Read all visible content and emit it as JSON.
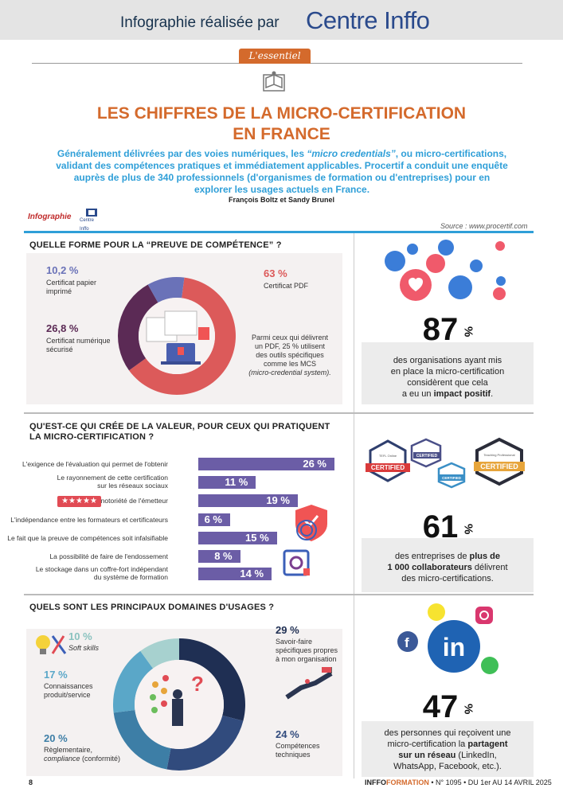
{
  "header": {
    "credit": "Infographie réalisée par",
    "brand": "Centre Inffo",
    "section_tab": "L'essentiel"
  },
  "title": {
    "line1": "LES CHIFFRES DE LA MICRO-CERTIFICATION",
    "line2": "EN FRANCE"
  },
  "intro": {
    "part1": "Généralement délivrées par des voies numériques, les ",
    "italic": "“micro credentials”",
    "part2": ", ou micro-certifications, validant des compétences pratiques et immédiatement applicables. Procertif a conduit une enquête auprès de plus de 340 professionnels (d'organismes de formation ou d'entreprises) pour en explorer les usages actuels en France."
  },
  "authors": "François Boltz et Sandy Brunel",
  "infographie_label": "Infographie",
  "centre_inffo_small": "Centre Inffo",
  "source": "Source : www.procertif.com",
  "section1": {
    "title": "QUELLE FORME POUR LA “PREUVE DE COMPÉTENCE” ?",
    "items": [
      {
        "pct": "10,2 %",
        "label1": "Certificat papier",
        "label2": "imprimé",
        "value": 10.2,
        "color": "#6a72b8"
      },
      {
        "pct": "26,8 %",
        "label1": "Certificat numérique",
        "label2": "sécurisé",
        "value": 26.8,
        "color": "#5b2a55"
      },
      {
        "pct": "63 %",
        "label1": "Certificat PDF",
        "label2": "",
        "value": 63,
        "color": "#dc5a5a"
      }
    ],
    "note1": "Parmi ceux qui délivrent",
    "note2": "un PDF, 25 % utilisent",
    "note3": "des outils spécifiques",
    "note4": "comme les MCS",
    "note5": "(micro-credential system)."
  },
  "stat1": {
    "value": "87",
    "text1": "des organisations ayant mis",
    "text2": "en place la micro-certification",
    "text3": "considèrent que cela",
    "text4_a": "a eu un ",
    "text4_b": "impact positif",
    "text4_c": "."
  },
  "section2": {
    "title1": "QU'EST-CE QUI CRÉE DE LA VALEUR, POUR CEUX QUI PRATIQUENT",
    "title2": "LA MICRO-CERTIFICATION ?",
    "rows": [
      {
        "label": "L'exigence de l'évaluation qui permet de l'obtenir",
        "label2": "",
        "pct": "26 %",
        "value": 26
      },
      {
        "label": "Le rayonnement de cette certification",
        "label2": "sur les réseaux sociaux",
        "pct": "11 %",
        "value": 11
      },
      {
        "label": "La notoriété de l'émetteur",
        "label2": "",
        "pct": "19 %",
        "value": 19
      },
      {
        "label": "L'indépendance entre les formateurs et certificateurs",
        "label2": "",
        "pct": "6 %",
        "value": 6
      },
      {
        "label": "Le fait que la preuve de compétences soit infalsifiable",
        "label2": "",
        "pct": "15 %",
        "value": 15
      },
      {
        "label": "La possibilité de faire de l'endossement",
        "label2": "",
        "pct": "8 %",
        "value": 8
      },
      {
        "label": "Le stockage dans un coffre-fort indépendant",
        "label2": "du système de formation",
        "pct": "14 %",
        "value": 14
      }
    ],
    "stars": "★★★★★"
  },
  "badges": {
    "b1": "CERTIFIED",
    "b2": "CERTIFIED",
    "b3": "CERTIFIED",
    "b4": "CERTIFIED",
    "b1_top": "TEFL Online",
    "b4_top": "Teaching Professional"
  },
  "stat2": {
    "value": "61",
    "text1_a": "des entreprises de ",
    "text1_b": "plus de",
    "text2_b": "1 000 collaborateurs",
    "text2_c": " délivrent",
    "text3": "des micro-certifications."
  },
  "section3": {
    "title": "QUELS SONT LES PRINCIPAUX DOMAINES D'USAGES ?",
    "items": [
      {
        "pct": "10 %",
        "label1": "Soft skills",
        "label2": "",
        "label3": "",
        "value": 10,
        "color": "#a7d1cf"
      },
      {
        "pct": "29 %",
        "label1": "Savoir-faire",
        "label2": "spécifiques propres",
        "label3": "à mon organisation",
        "value": 29,
        "color": "#1f2f53"
      },
      {
        "pct": "24 %",
        "label1": "Compétences",
        "label2": "techniques",
        "label3": "",
        "value": 24,
        "color": "#314b7d"
      },
      {
        "pct": "20 %",
        "label1": "Règlementaire,",
        "label2": "compliance",
        "label3": " (conformité)",
        "value": 20,
        "color": "#3d7ea6"
      },
      {
        "pct": "17 %",
        "label1": "Connaissances",
        "label2": "produit/service",
        "label3": "",
        "value": 17,
        "color": "#5aa7c8"
      }
    ]
  },
  "stat3": {
    "value": "47",
    "text1": "des personnes qui reçoivent une",
    "text2_a": "micro-certification la ",
    "text2_b": "partagent",
    "text3_b": "sur un réseau",
    "text3_c": " (LinkedIn,",
    "text4": "WhatsApp, Facebook, etc.)."
  },
  "social": {
    "linkedin": "in"
  },
  "footer": {
    "page": "8",
    "pub_a": "INFFO",
    "pub_b": "FORMATION",
    "pub_c": " • N° 1095 • DU 1er AU 14 AVRIL 2025"
  },
  "colors": {
    "orange": "#d46a2c",
    "blue": "#2f9fd8",
    "purple_bar": "#6b5da6"
  }
}
